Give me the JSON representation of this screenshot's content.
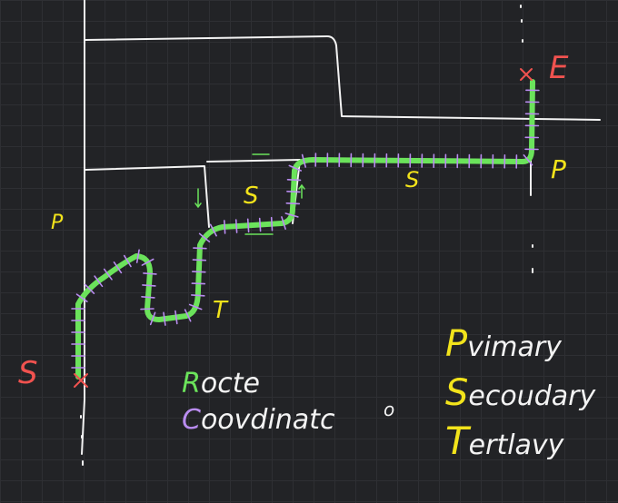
{
  "labels": {
    "start": "S",
    "end": "E",
    "primary_left": "P",
    "primary_right": "P",
    "secondary_a": "S",
    "secondary_b": "S",
    "tertiary": "T"
  },
  "legend_left": {
    "route_initial": "R",
    "route_rest": "octe",
    "coord_initial": "C",
    "coord_rest": "oovdinatc",
    "coord_tail": "o"
  },
  "legend_right": {
    "primary_initial": "P",
    "primary_rest": "vimary",
    "secondary_initial": "S",
    "secondary_rest": "ecoudary",
    "tertiary_initial": "T",
    "tertiary_rest": "ertlavy"
  },
  "colors": {
    "background": "#222326",
    "grid": "#2e2f33",
    "road": "#f3f3f3",
    "route": "#6be35b",
    "coordinate": "#b98cf0",
    "marker": "#f0524f",
    "label_yellow": "#f2e31b"
  }
}
